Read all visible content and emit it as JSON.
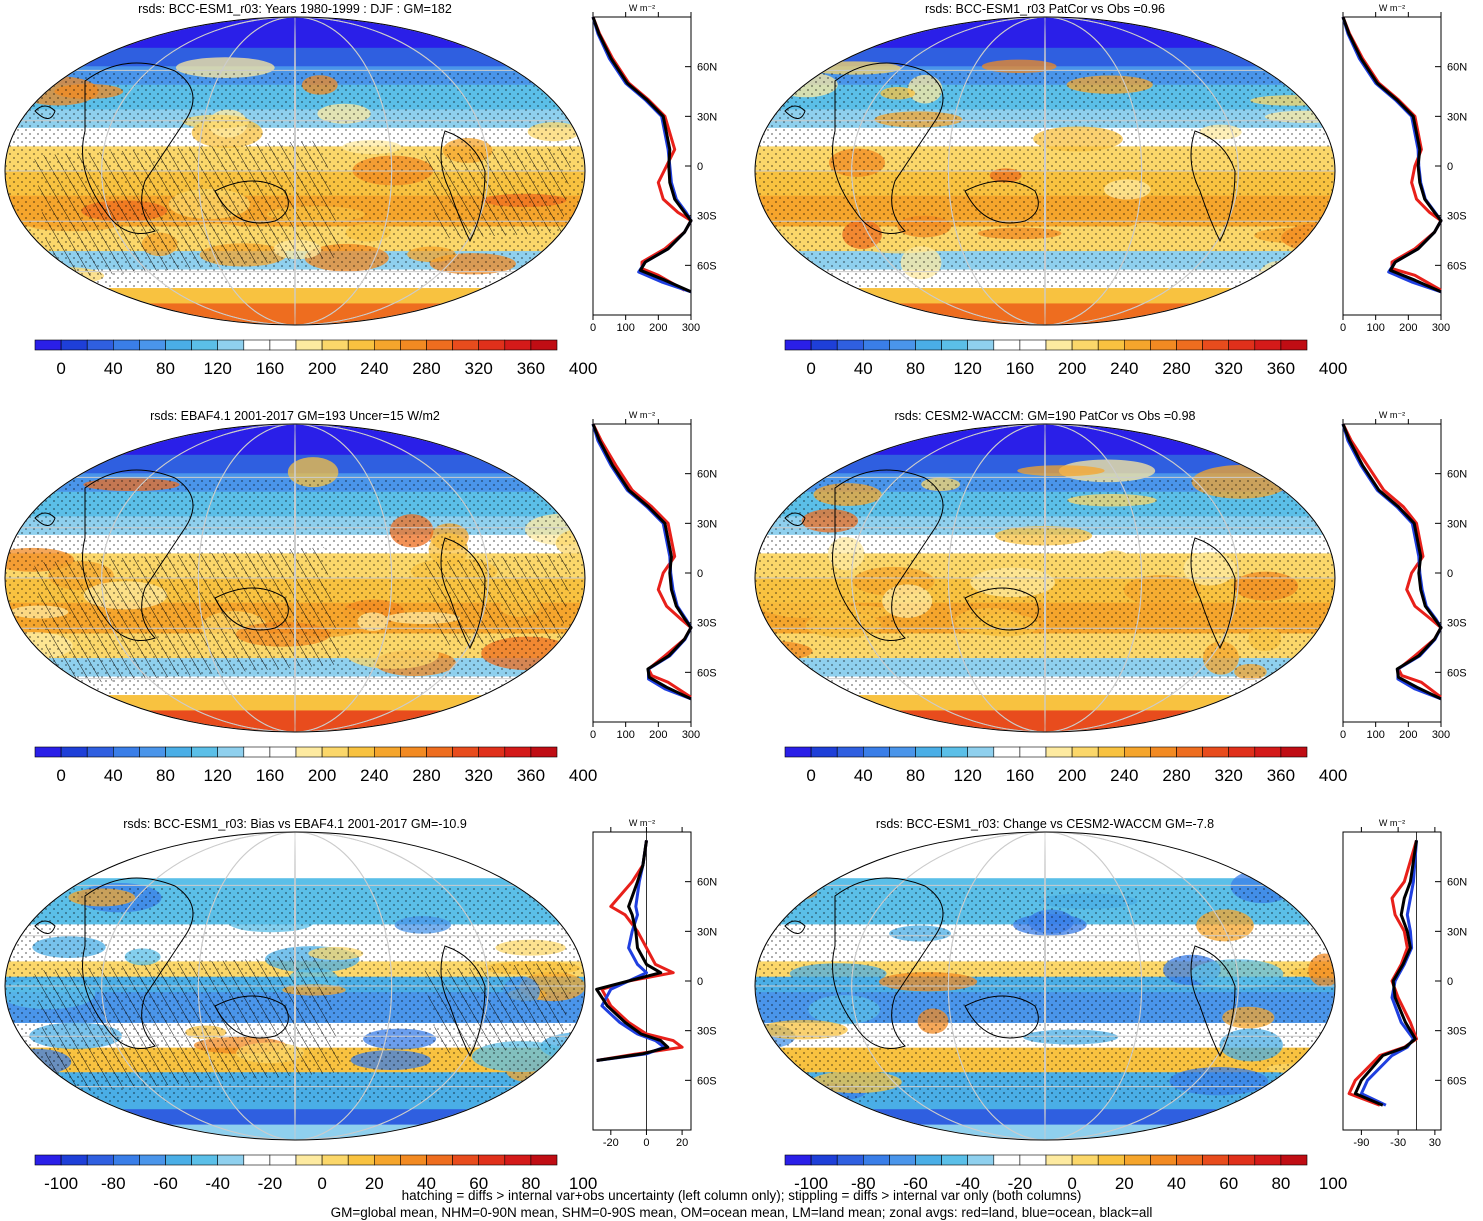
{
  "colors": {
    "red_line": "#e8201a",
    "blue_line": "#1f3fe0",
    "black_line": "#000000",
    "abs_palette": [
      "#2a1fe8",
      "#1e3fd8",
      "#2f5fe0",
      "#3a7ee8",
      "#4a95ea",
      "#4aaee6",
      "#5bbfe8",
      "#8fd0ee",
      "#ffffff",
      "#ffffff",
      "#fdeaa0",
      "#fbd76a",
      "#f8c240",
      "#f5a52c",
      "#f28a22",
      "#ee6d1f",
      "#e84c1d",
      "#e0301b",
      "#d41a19",
      "#c00d14"
    ],
    "diff_palette": [
      "#2a1fe8",
      "#1e3fd8",
      "#2f5fe0",
      "#3a7ee8",
      "#4a95ea",
      "#4aaee6",
      "#5bbfe8",
      "#8fd0ee",
      "#ffffff",
      "#ffffff",
      "#fdeaa0",
      "#fbd76a",
      "#f8c240",
      "#f5a52c",
      "#f28a22",
      "#ee6d1f",
      "#e84c1d",
      "#e0301b",
      "#d41a19",
      "#c00d14"
    ]
  },
  "zonal_lat_labels": [
    "60N",
    "30N",
    "0",
    "30S",
    "60S"
  ],
  "panels": [
    {
      "id": "p1",
      "title": "rsds: BCC-ESM1_r03: Years 1980-1999 : DJF : GM=182",
      "colorbar_labels": [
        "0",
        "40",
        "80",
        "120",
        "160",
        "200",
        "240",
        "280",
        "320",
        "360",
        "400"
      ],
      "zonal_unit": "W m⁻²",
      "zonal_xticks": [
        "0",
        "100",
        "200",
        "300"
      ],
      "kind": "abs",
      "hatch": true
    },
    {
      "id": "p2",
      "title": "rsds: BCC-ESM1_r03 PatCor vs Obs =0.96",
      "colorbar_labels": [
        "0",
        "40",
        "80",
        "120",
        "160",
        "200",
        "240",
        "280",
        "320",
        "360",
        "400"
      ],
      "zonal_unit": "W m⁻²",
      "zonal_xticks": [
        "0",
        "100",
        "200",
        "300"
      ],
      "kind": "abs",
      "hatch": false
    },
    {
      "id": "p3",
      "title": "rsds: EBAF4.1 2001-2017 GM=193 Uncer=15 W/m2",
      "colorbar_labels": [
        "0",
        "40",
        "80",
        "120",
        "160",
        "200",
        "240",
        "280",
        "320",
        "360",
        "400"
      ],
      "zonal_unit": "W m⁻²",
      "zonal_xticks": [
        "0",
        "100",
        "200",
        "300"
      ],
      "kind": "abs",
      "hatch": true
    },
    {
      "id": "p4",
      "title": "rsds: CESM2-WACCM: GM=190 PatCor vs Obs =0.98",
      "colorbar_labels": [
        "0",
        "40",
        "80",
        "120",
        "160",
        "200",
        "240",
        "280",
        "320",
        "360",
        "400"
      ],
      "zonal_unit": "W m⁻²",
      "zonal_xticks": [
        "0",
        "100",
        "200",
        "300"
      ],
      "kind": "abs",
      "hatch": false
    },
    {
      "id": "p5",
      "title": "rsds: BCC-ESM1_r03: Bias vs EBAF4.1 2001-2017 GM=-10.9",
      "colorbar_labels": [
        "-100",
        "-80",
        "-60",
        "-40",
        "-20",
        "0",
        "20",
        "40",
        "60",
        "80",
        "100"
      ],
      "zonal_unit": "W m⁻²",
      "zonal_xticks": [
        "-20",
        "0",
        "20"
      ],
      "kind": "diff",
      "hatch": true
    },
    {
      "id": "p6",
      "title": "rsds: BCC-ESM1_r03: Change vs CESM2-WACCM GM=-7.8",
      "colorbar_labels": [
        "-100",
        "-80",
        "-60",
        "-40",
        "-20",
        "0",
        "20",
        "40",
        "60",
        "80",
        "100"
      ],
      "zonal_unit": "W m⁻²",
      "zonal_xticks": [
        "-90",
        "-30",
        "30"
      ],
      "kind": "diff",
      "hatch": false
    }
  ],
  "chart_data": [
    {
      "type": "line",
      "title": "rsds: BCC-ESM1_r03: Years 1980-1999 : DJF : GM=182",
      "xlabel": "W m⁻²",
      "xlim": [
        0,
        300
      ],
      "y_ticks": [
        "60N",
        "30N",
        "0",
        "30S",
        "60S"
      ],
      "ylim": [
        90,
        -90
      ],
      "series": [
        {
          "name": "red=land",
          "x": [
            0,
            20,
            60,
            110,
            170,
            220,
            250,
            225,
            200,
            215,
            260,
            300,
            280,
            220,
            150,
            150,
            200,
            280
          ],
          "y": [
            90,
            80,
            65,
            50,
            40,
            30,
            10,
            0,
            -10,
            -20,
            -28,
            -33,
            -40,
            -50,
            -58,
            -62,
            -66,
            -75
          ]
        },
        {
          "name": "blue=ocean",
          "x": [
            0,
            15,
            50,
            100,
            160,
            210,
            230,
            235,
            240,
            255,
            285,
            300,
            280,
            230,
            160,
            140,
            210,
            300
          ],
          "y": [
            90,
            80,
            65,
            50,
            40,
            30,
            10,
            0,
            -10,
            -20,
            -28,
            -33,
            -40,
            -50,
            -58,
            -64,
            -70,
            -76
          ]
        },
        {
          "name": "black=all",
          "x": [
            0,
            18,
            55,
            105,
            165,
            215,
            235,
            232,
            235,
            250,
            280,
            300,
            280,
            230,
            160,
            145,
            220,
            300
          ],
          "y": [
            90,
            80,
            65,
            50,
            40,
            30,
            10,
            0,
            -10,
            -20,
            -28,
            -33,
            -40,
            -50,
            -58,
            -63,
            -69,
            -76
          ]
        }
      ]
    },
    {
      "type": "line",
      "title": "rsds: BCC-ESM1_r03 PatCor vs Obs =0.96",
      "xlabel": "W m⁻²",
      "xlim": [
        0,
        300
      ],
      "y_ticks": [
        "60N",
        "30N",
        "0",
        "30S",
        "60S"
      ],
      "ylim": [
        90,
        -90
      ],
      "series": [
        {
          "name": "red=land",
          "x": [
            0,
            20,
            60,
            110,
            170,
            220,
            240,
            220,
            210,
            225,
            265,
            300,
            280,
            220,
            150,
            150,
            220,
            300
          ],
          "y": [
            90,
            80,
            65,
            50,
            40,
            30,
            10,
            0,
            -10,
            -20,
            -28,
            -33,
            -40,
            -50,
            -58,
            -62,
            -66,
            -75
          ]
        },
        {
          "name": "blue=ocean",
          "x": [
            0,
            15,
            50,
            100,
            160,
            210,
            230,
            232,
            238,
            252,
            282,
            300,
            280,
            230,
            160,
            140,
            210,
            300
          ],
          "y": [
            90,
            80,
            65,
            50,
            40,
            30,
            10,
            0,
            -10,
            -20,
            -28,
            -33,
            -40,
            -50,
            -58,
            -64,
            -70,
            -76
          ]
        },
        {
          "name": "black=all",
          "x": [
            0,
            18,
            55,
            105,
            165,
            215,
            235,
            230,
            235,
            250,
            280,
            300,
            280,
            230,
            160,
            145,
            220,
            300
          ],
          "y": [
            90,
            80,
            65,
            50,
            40,
            30,
            10,
            0,
            -10,
            -20,
            -28,
            -33,
            -40,
            -50,
            -58,
            -63,
            -69,
            -76
          ]
        }
      ]
    },
    {
      "type": "line",
      "title": "rsds: EBAF4.1 2001-2017 GM=193 Uncer=15 W/m2",
      "xlabel": "W m⁻²",
      "xlim": [
        0,
        300
      ],
      "y_ticks": [
        "60N",
        "30N",
        "0",
        "30S",
        "60S"
      ],
      "ylim": [
        90,
        -90
      ],
      "series": [
        {
          "name": "red=land",
          "x": [
            0,
            25,
            70,
            120,
            180,
            230,
            250,
            215,
            200,
            225,
            270,
            300,
            280,
            220,
            170,
            180,
            230,
            300
          ],
          "y": [
            90,
            80,
            65,
            50,
            40,
            30,
            10,
            0,
            -10,
            -20,
            -28,
            -33,
            -40,
            -50,
            -58,
            -62,
            -66,
            -75
          ]
        },
        {
          "name": "blue=ocean",
          "x": [
            0,
            15,
            55,
            105,
            165,
            215,
            235,
            238,
            245,
            258,
            285,
            300,
            282,
            235,
            170,
            170,
            220,
            300
          ],
          "y": [
            90,
            80,
            65,
            50,
            40,
            30,
            10,
            0,
            -10,
            -20,
            -28,
            -33,
            -40,
            -50,
            -58,
            -64,
            -70,
            -76
          ]
        },
        {
          "name": "black=all",
          "x": [
            0,
            20,
            60,
            110,
            170,
            220,
            240,
            235,
            240,
            255,
            282,
            300,
            280,
            232,
            168,
            172,
            225,
            300
          ],
          "y": [
            90,
            80,
            65,
            50,
            40,
            30,
            10,
            0,
            -10,
            -20,
            -28,
            -33,
            -40,
            -50,
            -58,
            -63,
            -69,
            -76
          ]
        }
      ]
    },
    {
      "type": "line",
      "title": "rsds: CESM2-WACCM: GM=190 PatCor vs Obs =0.98",
      "xlabel": "W m⁻²",
      "xlim": [
        0,
        300
      ],
      "y_ticks": [
        "60N",
        "30N",
        "0",
        "30S",
        "60S"
      ],
      "ylim": [
        90,
        -90
      ],
      "series": [
        {
          "name": "red=land",
          "x": [
            0,
            25,
            75,
            125,
            185,
            225,
            245,
            210,
            195,
            220,
            270,
            300,
            280,
            220,
            170,
            180,
            240,
            300
          ],
          "y": [
            90,
            80,
            65,
            50,
            40,
            30,
            10,
            0,
            -10,
            -20,
            -28,
            -33,
            -40,
            -50,
            -58,
            -62,
            -66,
            -75
          ]
        },
        {
          "name": "blue=ocean",
          "x": [
            0,
            15,
            55,
            105,
            165,
            212,
            232,
            235,
            242,
            255,
            285,
            300,
            282,
            235,
            168,
            168,
            220,
            300
          ],
          "y": [
            90,
            80,
            65,
            50,
            40,
            30,
            10,
            0,
            -10,
            -20,
            -28,
            -33,
            -40,
            -50,
            -58,
            -64,
            -70,
            -76
          ]
        },
        {
          "name": "black=all",
          "x": [
            0,
            20,
            60,
            110,
            170,
            218,
            238,
            232,
            238,
            252,
            282,
            300,
            280,
            232,
            166,
            170,
            226,
            300
          ],
          "y": [
            90,
            80,
            65,
            50,
            40,
            30,
            10,
            0,
            -10,
            -20,
            -28,
            -33,
            -40,
            -50,
            -58,
            -63,
            -69,
            -76
          ]
        }
      ]
    },
    {
      "type": "line",
      "title": "rsds: BCC-ESM1_r03: Bias vs EBAF4.1 2001-2017 GM=-10.9",
      "xlabel": "W m⁻²",
      "xlim": [
        -30,
        25
      ],
      "y_ticks": [
        "60N",
        "30N",
        "0",
        "30S",
        "60S"
      ],
      "ylim": [
        90,
        -90
      ],
      "series": [
        {
          "name": "red=land",
          "x": [
            0,
            -2,
            -8,
            -20,
            -12,
            -5,
            0,
            5,
            15,
            -10,
            -25,
            -20,
            -10,
            0,
            15,
            20,
            -5,
            -28
          ],
          "y": [
            85,
            70,
            60,
            45,
            40,
            30,
            20,
            10,
            5,
            0,
            -5,
            -15,
            -25,
            -32,
            -36,
            -40,
            -44,
            -48
          ]
        },
        {
          "name": "blue=ocean",
          "x": [
            0,
            -2,
            -4,
            -6,
            -5,
            -8,
            -10,
            -5,
            0,
            -10,
            -20,
            -25,
            -15,
            -5,
            5,
            10,
            0,
            -28
          ],
          "y": [
            85,
            70,
            60,
            45,
            40,
            30,
            20,
            10,
            5,
            0,
            -5,
            -15,
            -25,
            -32,
            -36,
            -40,
            -44,
            -48
          ]
        },
        {
          "name": "black=all",
          "x": [
            0,
            -2,
            -5,
            -10,
            -8,
            -6,
            -5,
            0,
            8,
            -10,
            -28,
            -22,
            -12,
            -3,
            8,
            12,
            -2,
            -28
          ],
          "y": [
            85,
            70,
            60,
            45,
            40,
            30,
            20,
            10,
            5,
            0,
            -5,
            -15,
            -25,
            -32,
            -36,
            -40,
            -44,
            -48
          ]
        }
      ]
    },
    {
      "type": "line",
      "title": "rsds: BCC-ESM1_r03: Change vs CESM2-WACCM GM=-7.8",
      "xlabel": "W m⁻²",
      "xlim": [
        -120,
        40
      ],
      "y_ticks": [
        "60N",
        "30N",
        "0",
        "30S",
        "60S"
      ],
      "ylim": [
        90,
        -90
      ],
      "series": [
        {
          "name": "red=land",
          "x": [
            0,
            -20,
            -40,
            -35,
            -20,
            -15,
            -25,
            -40,
            -30,
            -10,
            0,
            -20,
            -60,
            -100,
            -110,
            -60
          ],
          "y": [
            85,
            60,
            50,
            40,
            30,
            20,
            10,
            0,
            -10,
            -25,
            -35,
            -40,
            -45,
            -60,
            -68,
            -75
          ]
        },
        {
          "name": "blue=ocean",
          "x": [
            0,
            -5,
            -10,
            -15,
            -10,
            -8,
            -20,
            -35,
            -40,
            -25,
            -5,
            -15,
            -40,
            -80,
            -90,
            -50
          ],
          "y": [
            85,
            60,
            50,
            40,
            30,
            20,
            10,
            0,
            -10,
            -25,
            -35,
            -40,
            -45,
            -60,
            -68,
            -75
          ]
        },
        {
          "name": "black=all",
          "x": [
            0,
            -10,
            -20,
            -25,
            -15,
            -10,
            -22,
            -38,
            -35,
            -18,
            -2,
            -18,
            -55,
            -90,
            -100,
            -55
          ],
          "y": [
            85,
            60,
            50,
            40,
            30,
            20,
            10,
            0,
            -10,
            -25,
            -35,
            -40,
            -45,
            -60,
            -68,
            -75
          ]
        }
      ]
    }
  ],
  "footnote_line1": "hatching = diffs > internal var+obs uncertainty (left column only); stippling = diffs > internal var only (both columns)",
  "footnote_line2": "GM=global mean, NHM=0-90N mean, SHM=0-90S mean, OM=ocean mean, LM=land mean; zonal avgs: red=land, blue=ocean, black=all"
}
